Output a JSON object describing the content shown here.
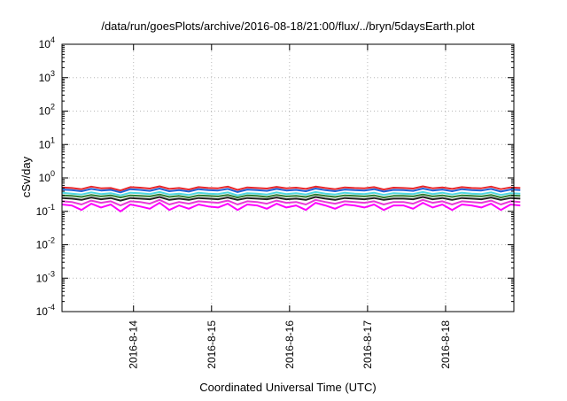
{
  "chart_data": {
    "type": "line",
    "title": "/data/run/goesPlots/archive/2016-08-18/21:00/flux/../bryn/5daysEarth.plot",
    "xlabel": "Coordinated Universal Time (UTC)",
    "ylabel": "cSv/day",
    "yscale": "log",
    "ylim": [
      0.0001,
      10000
    ],
    "xlim": [
      "2016-08-13 02:00",
      "2016-08-18 21:00"
    ],
    "grid": true,
    "xticks": [
      "2016-8-14",
      "2016-8-15",
      "2016-8-16",
      "2016-8-17",
      "2016-8-18"
    ],
    "yticks": [
      {
        "base": "10",
        "exp": "-4"
      },
      {
        "base": "10",
        "exp": "-3"
      },
      {
        "base": "10",
        "exp": "-2"
      },
      {
        "base": "10",
        "exp": "-1"
      },
      {
        "base": "10",
        "exp": "0"
      },
      {
        "base": "10",
        "exp": "1"
      },
      {
        "base": "10",
        "exp": "2"
      },
      {
        "base": "10",
        "exp": "3"
      },
      {
        "base": "10",
        "exp": "4"
      }
    ],
    "series": [
      {
        "color": "#e8262a",
        "start": "2016-08-13 02:00",
        "step_hours": 3,
        "values": [
          0.52,
          0.5,
          0.46,
          0.55,
          0.49,
          0.5,
          0.42,
          0.53,
          0.51,
          0.48,
          0.56,
          0.47,
          0.5,
          0.45,
          0.53,
          0.5,
          0.49,
          0.55,
          0.44,
          0.52,
          0.5,
          0.48,
          0.54,
          0.49,
          0.51,
          0.47,
          0.55,
          0.5,
          0.46,
          0.52,
          0.5,
          0.49,
          0.53,
          0.45,
          0.51,
          0.5,
          0.48,
          0.56,
          0.49,
          0.52,
          0.47,
          0.53,
          0.5,
          0.49,
          0.55,
          0.46,
          0.52,
          0.5
        ]
      },
      {
        "color": "#1f5fd6",
        "start": "2016-08-13 02:00",
        "step_hours": 3,
        "values": [
          0.45,
          0.43,
          0.4,
          0.47,
          0.42,
          0.44,
          0.37,
          0.46,
          0.44,
          0.41,
          0.48,
          0.4,
          0.43,
          0.39,
          0.46,
          0.43,
          0.42,
          0.47,
          0.38,
          0.45,
          0.43,
          0.41,
          0.47,
          0.42,
          0.44,
          0.4,
          0.48,
          0.43,
          0.4,
          0.45,
          0.43,
          0.42,
          0.46,
          0.39,
          0.44,
          0.43,
          0.41,
          0.48,
          0.42,
          0.45,
          0.4,
          0.46,
          0.43,
          0.42,
          0.47,
          0.39,
          0.45,
          0.43
        ]
      },
      {
        "color": "#4fd8e0",
        "start": "2016-08-13 02:00",
        "step_hours": 3,
        "values": [
          0.36,
          0.34,
          0.32,
          0.37,
          0.33,
          0.35,
          0.3,
          0.36,
          0.35,
          0.33,
          0.38,
          0.32,
          0.34,
          0.31,
          0.36,
          0.34,
          0.33,
          0.37,
          0.3,
          0.35,
          0.34,
          0.32,
          0.37,
          0.33,
          0.35,
          0.32,
          0.38,
          0.34,
          0.32,
          0.36,
          0.34,
          0.33,
          0.36,
          0.31,
          0.35,
          0.34,
          0.33,
          0.38,
          0.33,
          0.36,
          0.32,
          0.36,
          0.34,
          0.33,
          0.37,
          0.31,
          0.35,
          0.34
        ]
      },
      {
        "color": "#2e7d32",
        "start": "2016-08-13 02:00",
        "step_hours": 3,
        "values": [
          0.3,
          0.29,
          0.27,
          0.31,
          0.28,
          0.3,
          0.26,
          0.3,
          0.29,
          0.28,
          0.32,
          0.27,
          0.29,
          0.26,
          0.3,
          0.29,
          0.28,
          0.31,
          0.26,
          0.3,
          0.29,
          0.27,
          0.31,
          0.28,
          0.29,
          0.27,
          0.32,
          0.29,
          0.27,
          0.3,
          0.29,
          0.28,
          0.3,
          0.26,
          0.29,
          0.29,
          0.28,
          0.32,
          0.28,
          0.3,
          0.27,
          0.3,
          0.29,
          0.28,
          0.31,
          0.26,
          0.3,
          0.29
        ]
      },
      {
        "color": "#222222",
        "start": "2016-08-13 02:00",
        "step_hours": 3,
        "values": [
          0.25,
          0.24,
          0.22,
          0.26,
          0.23,
          0.25,
          0.21,
          0.25,
          0.24,
          0.23,
          0.27,
          0.22,
          0.24,
          0.22,
          0.25,
          0.24,
          0.23,
          0.26,
          0.22,
          0.25,
          0.24,
          0.23,
          0.26,
          0.23,
          0.24,
          0.22,
          0.27,
          0.24,
          0.22,
          0.25,
          0.24,
          0.23,
          0.25,
          0.22,
          0.24,
          0.24,
          0.23,
          0.27,
          0.23,
          0.25,
          0.22,
          0.25,
          0.24,
          0.23,
          0.26,
          0.22,
          0.25,
          0.24
        ]
      },
      {
        "color": "#e83ad8",
        "start": "2016-08-13 02:00",
        "step_hours": 3,
        "values": [
          0.2,
          0.19,
          0.16,
          0.21,
          0.18,
          0.2,
          0.15,
          0.2,
          0.19,
          0.17,
          0.22,
          0.16,
          0.19,
          0.17,
          0.2,
          0.19,
          0.18,
          0.21,
          0.16,
          0.2,
          0.19,
          0.17,
          0.21,
          0.18,
          0.19,
          0.16,
          0.22,
          0.19,
          0.17,
          0.2,
          0.19,
          0.18,
          0.2,
          0.16,
          0.19,
          0.19,
          0.17,
          0.22,
          0.18,
          0.2,
          0.16,
          0.2,
          0.19,
          0.18,
          0.21,
          0.16,
          0.2,
          0.19
        ]
      },
      {
        "color": "#ff00ff",
        "start": "2016-08-13 02:00",
        "step_hours": 3,
        "values": [
          0.16,
          0.15,
          0.11,
          0.17,
          0.13,
          0.16,
          0.1,
          0.16,
          0.14,
          0.12,
          0.18,
          0.11,
          0.15,
          0.12,
          0.16,
          0.14,
          0.13,
          0.17,
          0.11,
          0.16,
          0.15,
          0.12,
          0.17,
          0.13,
          0.15,
          0.11,
          0.18,
          0.15,
          0.12,
          0.16,
          0.15,
          0.13,
          0.16,
          0.11,
          0.15,
          0.15,
          0.12,
          0.18,
          0.13,
          0.16,
          0.11,
          0.16,
          0.15,
          0.13,
          0.17,
          0.11,
          0.16,
          0.15
        ]
      }
    ]
  }
}
